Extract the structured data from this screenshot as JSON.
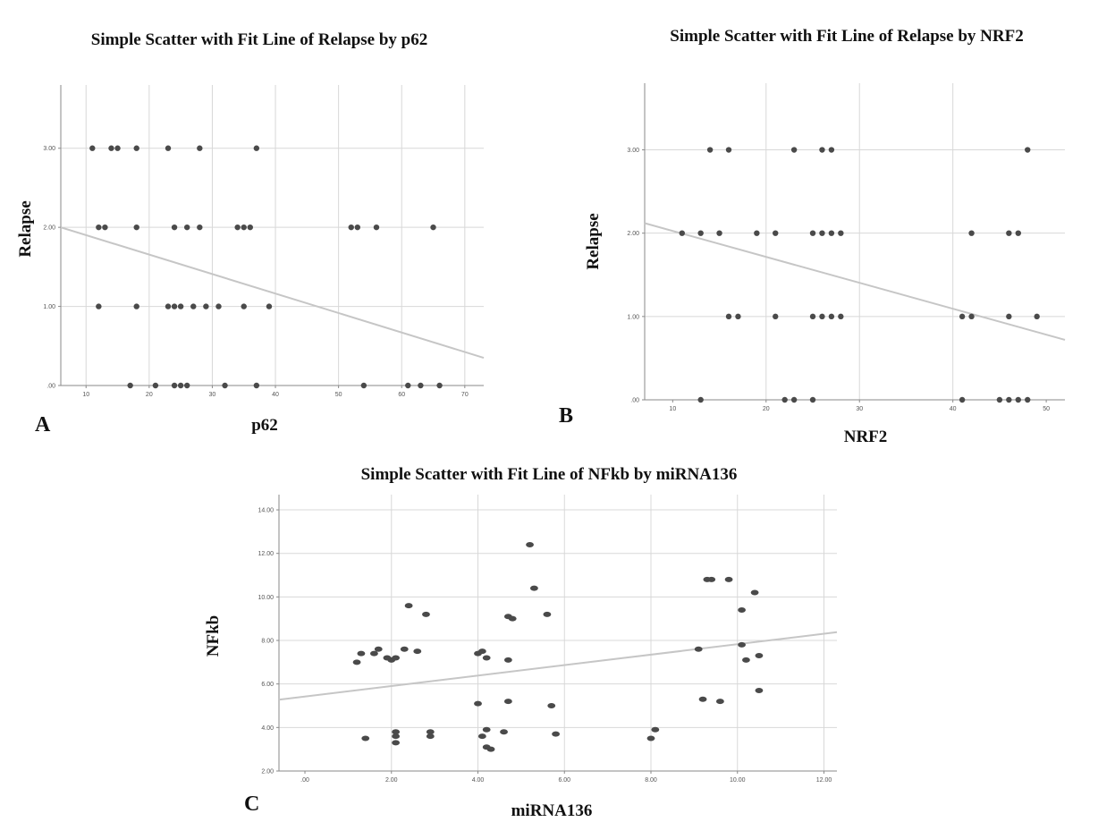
{
  "colors": {
    "grid": "#d8d8d8",
    "axis": "#8a8a8a",
    "point": "#4a4a4a",
    "fit": "#c6c6c6"
  },
  "panels": [
    {
      "label": "A",
      "title": "Simple Scatter with Fit Line of Relapse by p62"
    },
    {
      "label": "B",
      "title": "Simple Scatter with Fit Line of Relapse by NRF2"
    },
    {
      "label": "C",
      "title": "Simple Scatter with Fit Line of NFkb by miRNA136"
    }
  ],
  "chart_data": [
    {
      "type": "scatter",
      "title": "Simple Scatter with Fit Line of Relapse by p62",
      "xlabel": "p62",
      "ylabel": "Relapse",
      "xlim": [
        6,
        73
      ],
      "ylim": [
        0,
        3.8
      ],
      "xticks": [
        10,
        20,
        30,
        40,
        50,
        60,
        70
      ],
      "xtick_labels": [
        "10",
        "20",
        "30",
        "40",
        "50",
        "60",
        "70"
      ],
      "yticks": [
        0,
        1,
        2,
        3
      ],
      "ytick_labels": [
        ".00",
        "1.00",
        "2.00",
        "3.00"
      ],
      "x_grid": [
        10,
        20,
        30,
        40,
        50,
        60,
        70
      ],
      "fit_line": {
        "x": [
          6,
          73
        ],
        "y": [
          2.0,
          0.35
        ]
      },
      "points": [
        [
          11,
          3
        ],
        [
          14,
          3
        ],
        [
          15,
          3
        ],
        [
          18,
          3
        ],
        [
          23,
          3
        ],
        [
          28,
          3
        ],
        [
          37,
          3
        ],
        [
          12,
          2
        ],
        [
          13,
          2
        ],
        [
          18,
          2
        ],
        [
          24,
          2
        ],
        [
          26,
          2
        ],
        [
          28,
          2
        ],
        [
          34,
          2
        ],
        [
          35,
          2
        ],
        [
          36,
          2
        ],
        [
          52,
          2
        ],
        [
          53,
          2
        ],
        [
          56,
          2
        ],
        [
          65,
          2
        ],
        [
          12,
          1
        ],
        [
          18,
          1
        ],
        [
          23,
          1
        ],
        [
          24,
          1
        ],
        [
          25,
          1
        ],
        [
          27,
          1
        ],
        [
          29,
          1
        ],
        [
          31,
          1
        ],
        [
          35,
          1
        ],
        [
          39,
          1
        ],
        [
          17,
          0
        ],
        [
          21,
          0
        ],
        [
          24,
          0
        ],
        [
          25,
          0
        ],
        [
          26,
          0
        ],
        [
          32,
          0
        ],
        [
          37,
          0
        ],
        [
          54,
          0
        ],
        [
          61,
          0
        ],
        [
          63,
          0
        ],
        [
          66,
          0
        ]
      ]
    },
    {
      "type": "scatter",
      "title": "Simple Scatter with Fit Line of Relapse by NRF2",
      "xlabel": "NRF2",
      "ylabel": "Relapse",
      "xlim": [
        7,
        52
      ],
      "ylim": [
        0,
        3.8
      ],
      "xticks": [
        10,
        20,
        30,
        40,
        50
      ],
      "xtick_labels": [
        "10",
        "20",
        "30",
        "40",
        "50"
      ],
      "yticks": [
        0,
        1,
        2,
        3
      ],
      "ytick_labels": [
        ".00",
        "1.00",
        "2.00",
        "3.00"
      ],
      "x_grid": [
        20,
        30,
        40
      ],
      "fit_line": {
        "x": [
          7,
          52
        ],
        "y": [
          2.12,
          0.72
        ]
      },
      "points": [
        [
          14,
          3
        ],
        [
          16,
          3
        ],
        [
          23,
          3
        ],
        [
          26,
          3
        ],
        [
          27,
          3
        ],
        [
          48,
          3
        ],
        [
          11,
          2
        ],
        [
          13,
          2
        ],
        [
          15,
          2
        ],
        [
          19,
          2
        ],
        [
          21,
          2
        ],
        [
          25,
          2
        ],
        [
          26,
          2
        ],
        [
          27,
          2
        ],
        [
          28,
          2
        ],
        [
          42,
          2
        ],
        [
          46,
          2
        ],
        [
          47,
          2
        ],
        [
          16,
          1
        ],
        [
          17,
          1
        ],
        [
          21,
          1
        ],
        [
          25,
          1
        ],
        [
          26,
          1
        ],
        [
          27,
          1
        ],
        [
          28,
          1
        ],
        [
          41,
          1
        ],
        [
          42,
          1
        ],
        [
          46,
          1
        ],
        [
          49,
          1
        ],
        [
          13,
          0
        ],
        [
          22,
          0
        ],
        [
          23,
          0
        ],
        [
          25,
          0
        ],
        [
          41,
          0
        ],
        [
          45,
          0
        ],
        [
          46,
          0
        ],
        [
          47,
          0
        ],
        [
          48,
          0
        ]
      ]
    },
    {
      "type": "scatter",
      "title": "Simple Scatter with Fit Line of NFkb by miRNA136",
      "xlabel": "miRNA136",
      "ylabel": "NFkb",
      "xlim": [
        -0.6,
        12.3
      ],
      "ylim": [
        2,
        14.7
      ],
      "xticks": [
        0,
        2,
        4,
        6,
        8,
        10,
        12
      ],
      "xtick_labels": [
        ".00",
        "2.00",
        "4.00",
        "6.00",
        "8.00",
        "10.00",
        "12.00"
      ],
      "yticks": [
        2,
        4,
        6,
        8,
        10,
        12,
        14
      ],
      "ytick_labels": [
        "2.00",
        "4.00",
        "6.00",
        "8.00",
        "10.00",
        "12.00",
        "14.00"
      ],
      "x_grid": [
        2,
        4,
        6,
        8,
        10,
        12
      ],
      "fit_line": {
        "x": [
          -0.6,
          12.3
        ],
        "y": [
          5.28,
          8.38
        ]
      },
      "points": [
        [
          1.2,
          7.0
        ],
        [
          1.3,
          7.4
        ],
        [
          1.4,
          3.5
        ],
        [
          1.6,
          7.4
        ],
        [
          1.7,
          7.6
        ],
        [
          1.9,
          7.2
        ],
        [
          2.0,
          7.1
        ],
        [
          2.1,
          7.2
        ],
        [
          2.1,
          3.3
        ],
        [
          2.1,
          3.6
        ],
        [
          2.1,
          3.8
        ],
        [
          2.3,
          7.6
        ],
        [
          2.4,
          9.6
        ],
        [
          2.6,
          7.5
        ],
        [
          2.8,
          9.2
        ],
        [
          2.9,
          3.8
        ],
        [
          2.9,
          3.6
        ],
        [
          4.0,
          7.4
        ],
        [
          4.1,
          7.5
        ],
        [
          4.2,
          7.2
        ],
        [
          4.0,
          5.1
        ],
        [
          4.1,
          3.6
        ],
        [
          4.2,
          3.9
        ],
        [
          4.2,
          3.1
        ],
        [
          4.3,
          3.0
        ],
        [
          4.6,
          3.8
        ],
        [
          4.7,
          5.2
        ],
        [
          4.7,
          7.1
        ],
        [
          4.7,
          9.1
        ],
        [
          4.8,
          9.0
        ],
        [
          5.2,
          12.4
        ],
        [
          5.3,
          10.4
        ],
        [
          5.6,
          9.2
        ],
        [
          5.7,
          5.0
        ],
        [
          5.8,
          3.7
        ],
        [
          8.0,
          3.5
        ],
        [
          8.1,
          3.9
        ],
        [
          9.1,
          7.6
        ],
        [
          9.2,
          5.3
        ],
        [
          9.3,
          10.8
        ],
        [
          9.4,
          10.8
        ],
        [
          9.6,
          5.2
        ],
        [
          9.8,
          10.8
        ],
        [
          10.1,
          9.4
        ],
        [
          10.1,
          7.8
        ],
        [
          10.2,
          7.1
        ],
        [
          10.4,
          10.2
        ],
        [
          10.5,
          7.3
        ],
        [
          10.5,
          5.7
        ]
      ]
    }
  ]
}
